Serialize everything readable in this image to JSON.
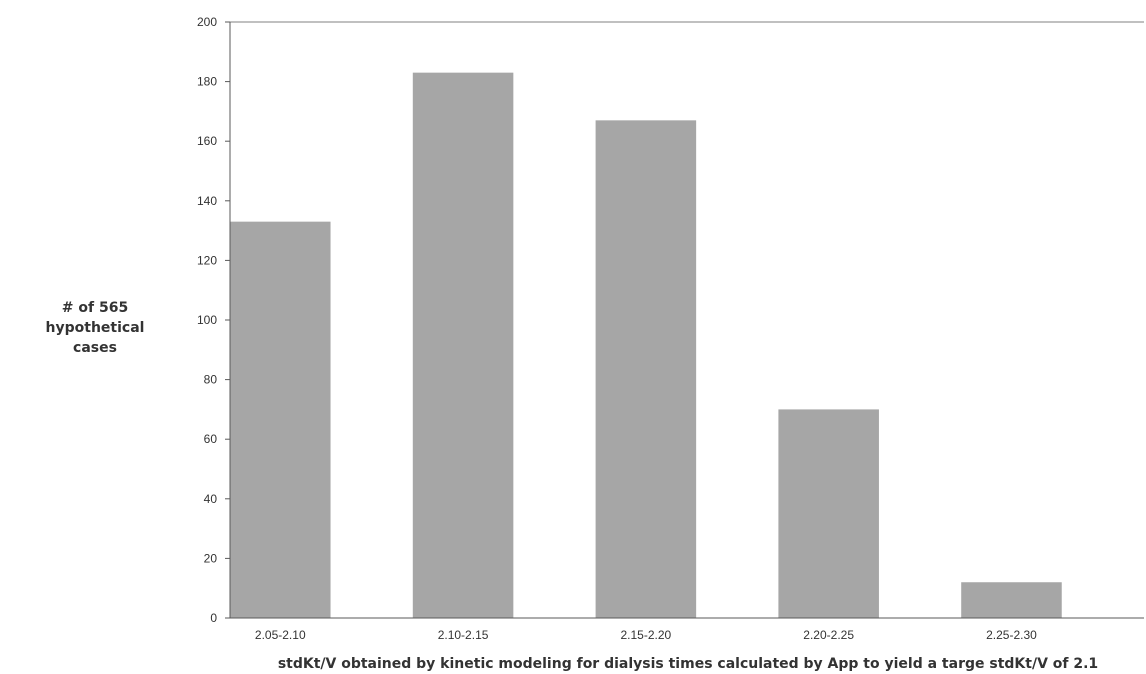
{
  "chart_data": {
    "type": "bar",
    "categories": [
      "2.05-2.10",
      "2.10-2.15",
      "2.15-2.20",
      "2.20-2.25",
      "2.25-2.30"
    ],
    "values": [
      133,
      183,
      167,
      70,
      12
    ],
    "ylabel_lines": [
      "# of 565",
      "hypothetical",
      "cases"
    ],
    "xlabel": "stdKt/V obtained by kinetic modeling for dialysis times calculated by App to yield a targe stdKt/V of 2.1",
    "ylim": [
      0,
      200
    ],
    "yticks": [
      0,
      20,
      40,
      60,
      80,
      100,
      120,
      140,
      160,
      180,
      200
    ],
    "grid": false,
    "bar_color": "#a6a6a6",
    "axis_color": "#595959"
  }
}
